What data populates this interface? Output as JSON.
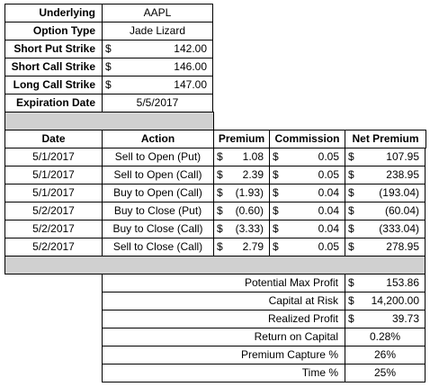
{
  "info": {
    "rows": [
      {
        "label": "Underlying",
        "value": "AAPL",
        "currency": ""
      },
      {
        "label": "Option Type",
        "value": "Jade Lizard",
        "currency": ""
      },
      {
        "label": "Short Put Strike",
        "value": "142.00",
        "currency": "$"
      },
      {
        "label": "Short Call Strike",
        "value": "146.00",
        "currency": "$"
      },
      {
        "label": "Long Call Strike",
        "value": "147.00",
        "currency": "$"
      },
      {
        "label": "Expiration Date",
        "value": "5/5/2017",
        "currency": ""
      }
    ]
  },
  "trades": {
    "headers": {
      "date": "Date",
      "action": "Action",
      "premium": "Premium",
      "commission": "Commission",
      "net_premium": "Net Premium"
    },
    "currency": "$",
    "rows": [
      {
        "date": "5/1/2017",
        "action": "Sell to Open (Put)",
        "premium": "1.08",
        "commission": "0.05",
        "net_premium": "107.95"
      },
      {
        "date": "5/1/2017",
        "action": "Sell to Open (Call)",
        "premium": "2.39",
        "commission": "0.05",
        "net_premium": "238.95"
      },
      {
        "date": "5/1/2017",
        "action": "Buy to Open (Call)",
        "premium": "(1.93)",
        "commission": "0.04",
        "net_premium": "(193.04)"
      },
      {
        "date": "5/2/2017",
        "action": "Buy to Close (Put)",
        "premium": "(0.60)",
        "commission": "0.04",
        "net_premium": "(60.04)"
      },
      {
        "date": "5/2/2017",
        "action": "Buy to Close (Call)",
        "premium": "(3.33)",
        "commission": "0.04",
        "net_premium": "(333.04)"
      },
      {
        "date": "5/2/2017",
        "action": "Sell to Close (Call)",
        "premium": "2.79",
        "commission": "0.05",
        "net_premium": "278.95"
      }
    ]
  },
  "summary": {
    "rows": [
      {
        "label": "Potential Max Profit",
        "currency": "$",
        "value": "153.86"
      },
      {
        "label": "Capital at Risk",
        "currency": "$",
        "value": "14,200.00"
      },
      {
        "label": "Realized Profit",
        "currency": "$",
        "value": "39.73"
      },
      {
        "label": "Return on Capital",
        "currency": "",
        "value": "0.28%"
      },
      {
        "label": "Premium Capture %",
        "currency": "",
        "value": "26%"
      },
      {
        "label": "Time %",
        "currency": "",
        "value": "25%"
      }
    ]
  },
  "colors": {
    "separator_fill": "#d0d0d0",
    "border": "#000000"
  }
}
